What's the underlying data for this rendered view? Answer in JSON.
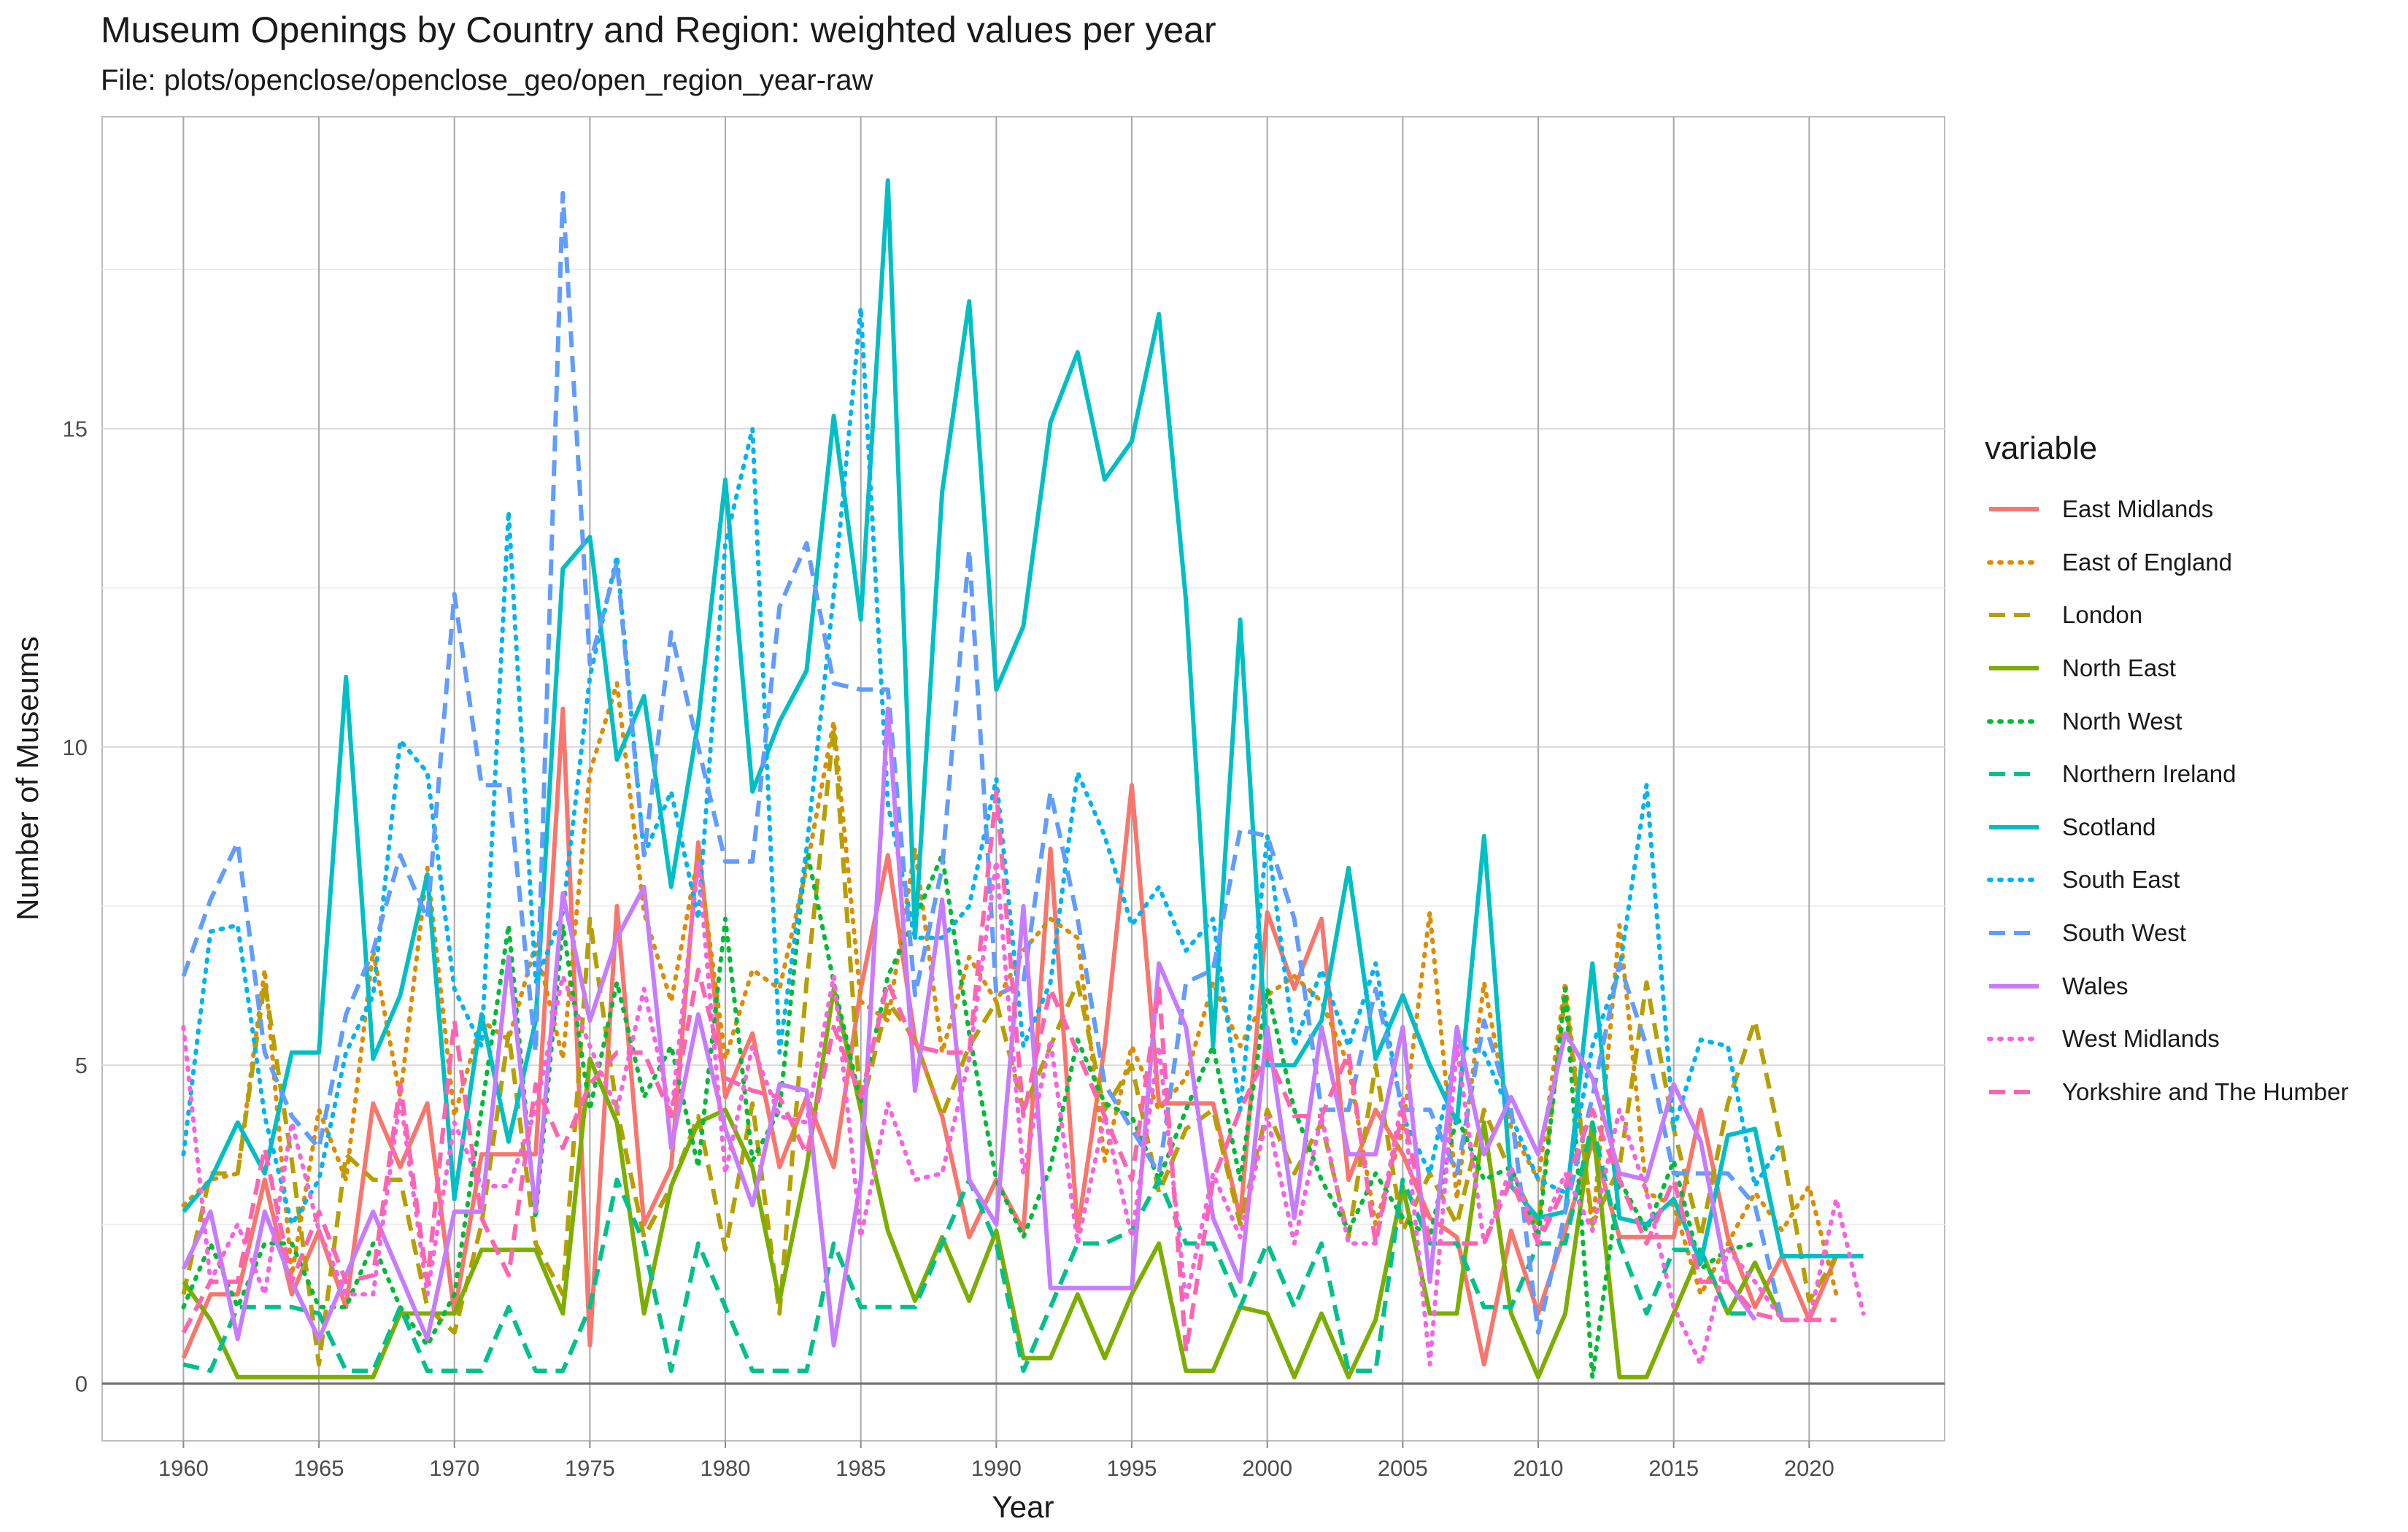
{
  "title": "Museum Openings by Country and Region: weighted values per year",
  "subtitle": "File: plots/openclose/openclose_geo/open_region_year-raw",
  "chart_data": {
    "type": "line",
    "title": "Museum Openings by Country and Region: weighted values per year",
    "subtitle": "File: plots/openclose/openclose_geo/open_region_year-raw",
    "xlabel": "Year",
    "ylabel": "Number of Museums",
    "xlim": [
      1957,
      2025
    ],
    "ylim": [
      -0.9,
      19.9
    ],
    "x_ticks": [
      1960,
      1965,
      1970,
      1975,
      1980,
      1985,
      1990,
      1995,
      2000,
      2005,
      2010,
      2015,
      2020
    ],
    "y_ticks": [
      0,
      5,
      10,
      15
    ],
    "grid": true,
    "legend_title": "variable",
    "legend_position": "right",
    "series": [
      {
        "name": "East Midlands",
        "color": "#F8766D",
        "dash": "solid",
        "x_start": 1960,
        "values": [
          0.4,
          1.4,
          1.4,
          3.2,
          1.4,
          2.4,
          1.2,
          4.4,
          3.4,
          4.4,
          1.1,
          3.6,
          3.6,
          3.6,
          10.6,
          0.6,
          7.5,
          2.5,
          3.4,
          8.5,
          4.5,
          5.5,
          3.4,
          4.5,
          3.4,
          6.2,
          8.3,
          5.4,
          4.2,
          2.3,
          3.2,
          2.4,
          8.4,
          2.4,
          5.3,
          9.4,
          4.4,
          4.4,
          4.4,
          2.6,
          7.4,
          6.2,
          7.3,
          3.2,
          4.3,
          3.6,
          2.6,
          2.3,
          0.3,
          2.4,
          1.1,
          2.4,
          3.8,
          2.3,
          2.3,
          2.3,
          4.3,
          2.3,
          1.2,
          2.0,
          1.0,
          2.0,
          2.0
        ]
      },
      {
        "name": "East of England",
        "color": "#DE8C00",
        "dash": "dot",
        "x_start": 1960,
        "values": [
          2.8,
          3.2,
          3.3,
          6.5,
          1.7,
          4.3,
          3.2,
          6.8,
          4.5,
          8.1,
          4.2,
          5.7,
          5.4,
          6.9,
          5.1,
          9.6,
          11.0,
          7.4,
          6.0,
          8.3,
          5.1,
          6.5,
          6.2,
          8.1,
          10.4,
          6.0,
          5.7,
          8.4,
          5.2,
          6.7,
          6.0,
          6.8,
          7.3,
          7.0,
          3.5,
          5.3,
          4.3,
          4.8,
          6.3,
          5.3,
          6.1,
          6.4,
          6.0,
          5.0,
          2.5,
          4.0,
          7.4,
          2.9,
          6.3,
          4.0,
          3.2,
          6.3,
          2.4,
          7.2,
          3.0,
          2.8,
          1.4,
          2.2,
          3.0,
          2.4,
          3.1,
          1.4,
          null
        ]
      },
      {
        "name": "London",
        "color": "#B79F00",
        "dash": "dash",
        "x_start": 1960,
        "values": [
          1.4,
          3.3,
          3.3,
          6.3,
          3.5,
          0.3,
          3.6,
          3.2,
          3.2,
          1.2,
          0.8,
          2.5,
          5.5,
          2.2,
          1.4,
          7.3,
          4.3,
          2.3,
          3.1,
          4.2,
          2.1,
          4.4,
          1.1,
          6.3,
          10.3,
          4.3,
          6.0,
          5.4,
          4.2,
          5.3,
          6.0,
          4.3,
          5.3,
          6.3,
          4.3,
          5.0,
          3.0,
          4.0,
          4.3,
          2.5,
          4.3,
          3.3,
          4.1,
          2.3,
          5.0,
          2.4,
          3.3,
          2.5,
          4.3,
          3.3,
          2.5,
          6.1,
          2.5,
          3.4,
          6.3,
          4.0,
          2.3,
          4.4,
          5.7,
          3.7,
          1.3,
          2.0,
          null
        ]
      },
      {
        "name": "North East",
        "color": "#7CAE00",
        "dash": "solid",
        "x_start": 1960,
        "values": [
          1.6,
          1.0,
          0.1,
          0.1,
          0.1,
          0.1,
          0.1,
          0.1,
          1.1,
          1.1,
          1.1,
          2.1,
          2.1,
          2.1,
          1.1,
          5.1,
          4.1,
          1.1,
          3.1,
          4.1,
          4.3,
          3.4,
          1.3,
          3.4,
          6.2,
          4.3,
          2.4,
          1.3,
          2.3,
          1.3,
          2.4,
          0.4,
          0.4,
          1.4,
          0.4,
          1.4,
          2.2,
          0.2,
          0.2,
          1.2,
          1.1,
          0.1,
          1.1,
          0.1,
          1.0,
          3.1,
          1.1,
          1.1,
          4.1,
          1.1,
          0.1,
          1.1,
          4.1,
          0.1,
          0.1,
          1.1,
          2.1,
          1.1,
          1.9,
          1.0,
          null,
          null,
          null
        ]
      },
      {
        "name": "North West",
        "color": "#00BA38",
        "dash": "dot",
        "x_start": 1960,
        "values": [
          1.2,
          2.2,
          1.2,
          2.2,
          2.2,
          1.2,
          1.2,
          2.2,
          1.2,
          0.6,
          1.4,
          4.3,
          7.2,
          2.6,
          7.2,
          4.3,
          6.3,
          4.5,
          5.3,
          3.4,
          7.3,
          3.5,
          4.3,
          8.4,
          6.3,
          4.4,
          6.4,
          7.3,
          8.3,
          5.5,
          3.2,
          2.3,
          3.4,
          5.4,
          4.4,
          4.2,
          3.2,
          4.3,
          5.3,
          3.2,
          6.2,
          4.3,
          3.2,
          2.4,
          3.3,
          2.6,
          2.3,
          4.2,
          3.2,
          3.4,
          2.3,
          6.2,
          0.1,
          3.2,
          2.4,
          3.5,
          1.8,
          2.1,
          2.2,
          null,
          null,
          null,
          null
        ]
      },
      {
        "name": "Northern Ireland",
        "color": "#00C08B",
        "dash": "dash",
        "x_start": 1960,
        "values": [
          0.3,
          0.2,
          1.2,
          1.2,
          1.2,
          1.1,
          0.2,
          0.2,
          1.2,
          0.2,
          0.2,
          0.2,
          1.2,
          0.2,
          0.2,
          1.2,
          3.2,
          2.2,
          0.2,
          2.2,
          1.2,
          0.2,
          0.2,
          0.2,
          2.2,
          1.2,
          1.2,
          1.2,
          2.2,
          3.2,
          2.2,
          0.2,
          1.2,
          2.2,
          2.2,
          2.4,
          3.2,
          2.2,
          2.2,
          1.2,
          2.2,
          1.2,
          2.2,
          0.2,
          0.2,
          3.2,
          2.2,
          2.2,
          1.2,
          1.2,
          2.2,
          2.2,
          4.1,
          2.2,
          1.1,
          2.1,
          2.1,
          1.1,
          1.1,
          null,
          null,
          null,
          null
        ]
      },
      {
        "name": "Scotland",
        "color": "#00BFC4",
        "dash": "solid",
        "x_start": 1960,
        "values": [
          2.7,
          3.2,
          4.1,
          3.3,
          5.2,
          5.2,
          11.1,
          5.1,
          6.1,
          8.0,
          2.9,
          5.8,
          3.8,
          5.7,
          12.8,
          13.3,
          9.8,
          10.8,
          7.8,
          10.4,
          14.2,
          9.3,
          10.4,
          11.2,
          15.2,
          12.0,
          18.9,
          7.0,
          14.0,
          17.0,
          10.9,
          11.9,
          15.1,
          16.2,
          14.2,
          14.8,
          16.8,
          12.3,
          5.3,
          12.0,
          5.0,
          5.0,
          5.7,
          8.1,
          5.1,
          6.1,
          5.0,
          4.1,
          8.6,
          3.1,
          2.6,
          2.7,
          6.6,
          2.6,
          2.5,
          2.9,
          1.9,
          3.9,
          4.0,
          2.0,
          2.0,
          2.0,
          2.0
        ]
      },
      {
        "name": "South East",
        "color": "#00B4F0",
        "dash": "dot",
        "x_start": 1960,
        "values": [
          3.6,
          7.1,
          7.2,
          4.2,
          2.5,
          3.2,
          5.2,
          6.1,
          10.1,
          9.6,
          6.2,
          5.3,
          13.7,
          6.3,
          7.4,
          11.1,
          13.0,
          8.3,
          9.3,
          7.3,
          13.2,
          15.0,
          5.2,
          8.4,
          12.4,
          16.9,
          9.1,
          7.0,
          7.0,
          7.5,
          9.5,
          5.3,
          6.3,
          9.6,
          8.6,
          7.2,
          7.8,
          6.8,
          7.3,
          4.3,
          8.6,
          5.3,
          6.5,
          5.3,
          6.6,
          4.2,
          3.3,
          5.3,
          5.2,
          4.2,
          3.2,
          3.0,
          5.3,
          6.5,
          9.4,
          4.0,
          5.4,
          5.3,
          3.1,
          3.8,
          null,
          null,
          null
        ]
      },
      {
        "name": "South West",
        "color": "#619CFF",
        "dash": "dash",
        "x_start": 1960,
        "values": [
          6.4,
          7.6,
          8.5,
          5.2,
          4.2,
          3.7,
          5.8,
          6.8,
          8.3,
          7.3,
          12.4,
          9.4,
          9.4,
          5.2,
          18.7,
          11.3,
          12.9,
          8.3,
          11.8,
          10.0,
          8.2,
          8.2,
          12.2,
          13.2,
          11.0,
          10.9,
          10.9,
          6.1,
          8.1,
          13.1,
          6.1,
          6.3,
          9.3,
          7.3,
          4.7,
          4.0,
          3.3,
          6.3,
          6.5,
          8.7,
          8.6,
          7.3,
          4.3,
          4.3,
          6.2,
          4.3,
          4.3,
          3.3,
          5.7,
          4.3,
          0.8,
          2.7,
          4.5,
          6.6,
          5.3,
          3.3,
          3.3,
          3.3,
          2.8,
          1.0,
          null,
          null,
          null
        ]
      },
      {
        "name": "Wales",
        "color": "#C77CFF",
        "dash": "solid",
        "x_start": 1960,
        "values": [
          1.8,
          2.7,
          0.7,
          2.7,
          1.6,
          0.7,
          1.7,
          2.7,
          1.7,
          0.7,
          2.7,
          2.7,
          6.7,
          2.7,
          7.7,
          5.7,
          7.0,
          7.8,
          3.7,
          5.8,
          4.0,
          2.8,
          4.7,
          4.6,
          0.6,
          3.2,
          10.6,
          4.6,
          7.6,
          3.2,
          2.5,
          7.5,
          1.5,
          1.5,
          1.5,
          1.5,
          6.6,
          5.6,
          2.6,
          1.6,
          5.6,
          2.6,
          5.6,
          3.6,
          3.6,
          5.6,
          1.6,
          5.6,
          3.6,
          4.5,
          3.6,
          5.5,
          4.8,
          3.3,
          3.2,
          4.7,
          3.8,
          1.6,
          1.0,
          null,
          null,
          null,
          null
        ]
      },
      {
        "name": "West Midlands",
        "color": "#F564E3",
        "dash": "dot",
        "x_start": 1960,
        "values": [
          5.6,
          1.6,
          2.5,
          1.4,
          4.1,
          2.4,
          1.4,
          1.4,
          4.5,
          1.4,
          4.1,
          3.1,
          3.1,
          4.3,
          6.4,
          5.3,
          4.3,
          6.2,
          4.2,
          8.2,
          3.3,
          5.3,
          4.2,
          4.1,
          6.4,
          2.3,
          4.4,
          3.2,
          3.3,
          5.1,
          8.2,
          3.3,
          5.4,
          2.2,
          4.2,
          2.3,
          5.3,
          1.3,
          3.3,
          2.3,
          4.2,
          2.2,
          4.2,
          2.2,
          2.2,
          4.5,
          0.3,
          5.3,
          2.2,
          3.4,
          2.3,
          3.3,
          2.4,
          4.3,
          3.0,
          1.2,
          0.3,
          2.1,
          1.6,
          1.0,
          1.0,
          2.9,
          1.1
        ]
      },
      {
        "name": "Yorkshire and The Humber",
        "color": "#FF64B0",
        "dash": "dash",
        "x_start": 1960,
        "values": [
          0.8,
          1.6,
          1.6,
          3.7,
          1.6,
          2.7,
          1.6,
          1.7,
          4.7,
          1.6,
          5.7,
          2.6,
          1.7,
          4.7,
          3.7,
          4.7,
          5.2,
          5.2,
          4.2,
          6.5,
          4.8,
          4.6,
          4.5,
          3.6,
          5.6,
          4.5,
          6.3,
          5.3,
          5.2,
          5.2,
          9.3,
          4.2,
          6.2,
          5.2,
          4.2,
          3.2,
          6.2,
          0.5,
          3.2,
          4.3,
          5.2,
          4.2,
          4.2,
          5.2,
          2.2,
          4.3,
          2.2,
          2.2,
          2.2,
          3.2,
          2.2,
          3.1,
          4.3,
          3.2,
          2.2,
          3.2,
          1.6,
          1.6,
          1.1,
          1.0,
          1.0,
          1.0,
          null
        ]
      }
    ]
  }
}
